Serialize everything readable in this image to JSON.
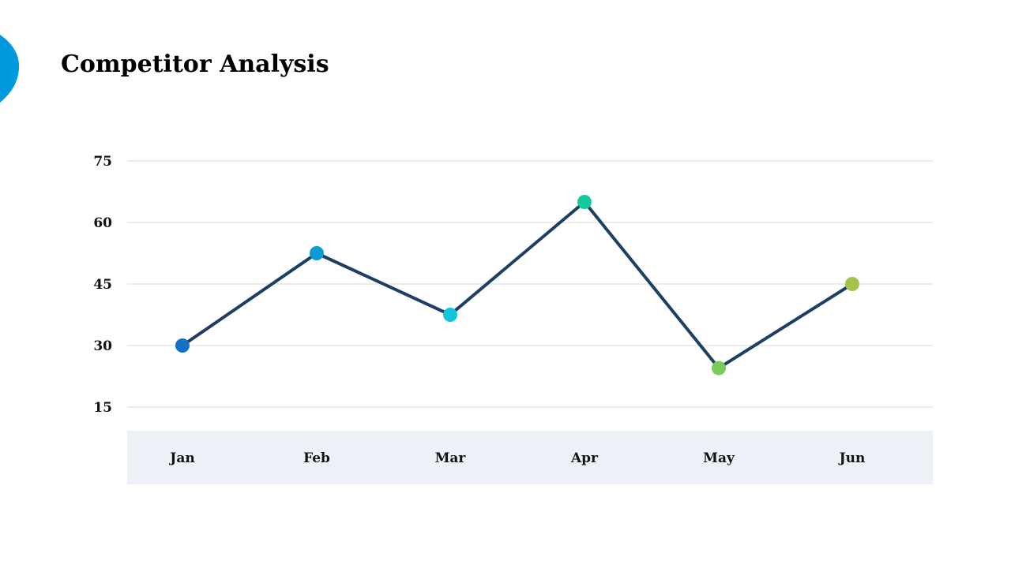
{
  "page": {
    "title": "Competitor Analysis",
    "accent_color": "#0099DD"
  },
  "chart_data": {
    "type": "line",
    "title": "",
    "xlabel": "",
    "ylabel": "",
    "categories": [
      "Jan",
      "Feb",
      "Mar",
      "Apr",
      "May",
      "Jun"
    ],
    "series": [
      {
        "values": [
          30,
          52.5,
          37.5,
          65,
          24.5,
          45
        ],
        "line_color": "#1C3F66",
        "point_colors": [
          "#1570C9",
          "#0B9BD6",
          "#10C6DA",
          "#14C9A0",
          "#7BCB5A",
          "#A6C24A"
        ]
      }
    ],
    "yticks": [
      75,
      60,
      45,
      30,
      15
    ],
    "ylim": [
      15,
      75
    ],
    "grid": true,
    "legend": "none",
    "category_band_color": "#EDF1F7",
    "gridline_color": "#D9D9D9"
  }
}
